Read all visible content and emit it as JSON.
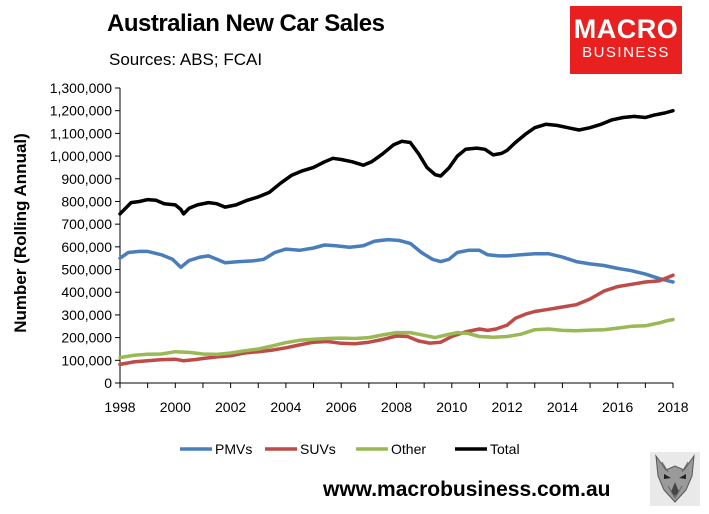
{
  "header": {
    "title": "Australian New Car Sales",
    "subtitle": "Sources: ABS; FCAI"
  },
  "brand": {
    "line1": "MACRO",
    "line2": "BUSINESS",
    "color": "#e8201f"
  },
  "footer": {
    "website": "www.macrobusiness.com.au",
    "logo_icon": "wolf-icon"
  },
  "chart_data": {
    "type": "line",
    "title": "Australian New Car Sales",
    "xlabel": "",
    "ylabel": "Number (Rolling Annual)",
    "xlim": [
      1998,
      2018
    ],
    "ylim": [
      0,
      1300000
    ],
    "grid": false,
    "legend_position": "bottom",
    "y_ticks": [
      {
        "value": 0,
        "label": "0"
      },
      {
        "value": 100000,
        "label": "100,000"
      },
      {
        "value": 200000,
        "label": "200,000"
      },
      {
        "value": 300000,
        "label": "300,000"
      },
      {
        "value": 400000,
        "label": "400,000"
      },
      {
        "value": 500000,
        "label": "500,000"
      },
      {
        "value": 600000,
        "label": "600,000"
      },
      {
        "value": 700000,
        "label": "700,000"
      },
      {
        "value": 800000,
        "label": "800,000"
      },
      {
        "value": 900000,
        "label": "900,000"
      },
      {
        "value": 1000000,
        "label": "1,000,000"
      },
      {
        "value": 1100000,
        "label": "1,100,000"
      },
      {
        "value": 1200000,
        "label": "1,200,000"
      },
      {
        "value": 1300000,
        "label": "1,300,000"
      }
    ],
    "x_ticks": [
      {
        "value": 1998,
        "label": "1998"
      },
      {
        "value": 2000,
        "label": "2000"
      },
      {
        "value": 2002,
        "label": "2002"
      },
      {
        "value": 2004,
        "label": "2004"
      },
      {
        "value": 2006,
        "label": "2006"
      },
      {
        "value": 2008,
        "label": "2008"
      },
      {
        "value": 2010,
        "label": "2010"
      },
      {
        "value": 2012,
        "label": "2012"
      },
      {
        "value": 2014,
        "label": "2014"
      },
      {
        "value": 2016,
        "label": "2016"
      },
      {
        "value": 2018,
        "label": "2018"
      }
    ],
    "series": [
      {
        "name": "PMVs",
        "color": "#4a7ebb",
        "points": [
          [
            1998.0,
            550000
          ],
          [
            1998.3,
            575000
          ],
          [
            1998.7,
            580000
          ],
          [
            1999.0,
            580000
          ],
          [
            1999.5,
            565000
          ],
          [
            1999.9,
            545000
          ],
          [
            2000.2,
            510000
          ],
          [
            2000.5,
            540000
          ],
          [
            2000.9,
            555000
          ],
          [
            2001.2,
            560000
          ],
          [
            2001.5,
            545000
          ],
          [
            2001.8,
            530000
          ],
          [
            2002.3,
            535000
          ],
          [
            2002.8,
            538000
          ],
          [
            2003.2,
            545000
          ],
          [
            2003.6,
            575000
          ],
          [
            2004.0,
            590000
          ],
          [
            2004.5,
            585000
          ],
          [
            2005.0,
            595000
          ],
          [
            2005.4,
            608000
          ],
          [
            2005.8,
            605000
          ],
          [
            2006.3,
            598000
          ],
          [
            2006.8,
            605000
          ],
          [
            2007.2,
            625000
          ],
          [
            2007.7,
            632000
          ],
          [
            2008.1,
            628000
          ],
          [
            2008.5,
            615000
          ],
          [
            2008.9,
            575000
          ],
          [
            2009.3,
            545000
          ],
          [
            2009.6,
            535000
          ],
          [
            2009.9,
            545000
          ],
          [
            2010.2,
            575000
          ],
          [
            2010.6,
            585000
          ],
          [
            2011.0,
            585000
          ],
          [
            2011.3,
            565000
          ],
          [
            2011.7,
            560000
          ],
          [
            2012.0,
            560000
          ],
          [
            2012.5,
            565000
          ],
          [
            2013.0,
            570000
          ],
          [
            2013.5,
            570000
          ],
          [
            2014.0,
            555000
          ],
          [
            2014.5,
            535000
          ],
          [
            2015.0,
            525000
          ],
          [
            2015.5,
            518000
          ],
          [
            2016.0,
            505000
          ],
          [
            2016.5,
            495000
          ],
          [
            2017.0,
            480000
          ],
          [
            2017.5,
            460000
          ],
          [
            2017.9,
            448000
          ],
          [
            2018.0,
            445000
          ]
        ]
      },
      {
        "name": "SUVs",
        "color": "#be4b48",
        "points": [
          [
            1998.0,
            82000
          ],
          [
            1998.5,
            93000
          ],
          [
            1999.0,
            98000
          ],
          [
            1999.5,
            103000
          ],
          [
            2000.0,
            105000
          ],
          [
            2000.3,
            98000
          ],
          [
            2000.7,
            103000
          ],
          [
            2001.0,
            108000
          ],
          [
            2001.5,
            115000
          ],
          [
            2002.0,
            120000
          ],
          [
            2002.5,
            132000
          ],
          [
            2003.0,
            138000
          ],
          [
            2003.5,
            145000
          ],
          [
            2004.0,
            155000
          ],
          [
            2004.5,
            168000
          ],
          [
            2005.0,
            180000
          ],
          [
            2005.5,
            183000
          ],
          [
            2006.0,
            175000
          ],
          [
            2006.5,
            173000
          ],
          [
            2007.0,
            180000
          ],
          [
            2007.5,
            192000
          ],
          [
            2008.0,
            207000
          ],
          [
            2008.4,
            205000
          ],
          [
            2008.8,
            185000
          ],
          [
            2009.2,
            176000
          ],
          [
            2009.6,
            180000
          ],
          [
            2010.0,
            205000
          ],
          [
            2010.5,
            225000
          ],
          [
            2011.0,
            238000
          ],
          [
            2011.3,
            232000
          ],
          [
            2011.6,
            238000
          ],
          [
            2012.0,
            255000
          ],
          [
            2012.3,
            285000
          ],
          [
            2012.7,
            305000
          ],
          [
            2013.0,
            315000
          ],
          [
            2013.5,
            325000
          ],
          [
            2014.0,
            335000
          ],
          [
            2014.5,
            345000
          ],
          [
            2015.0,
            370000
          ],
          [
            2015.5,
            405000
          ],
          [
            2016.0,
            425000
          ],
          [
            2016.5,
            435000
          ],
          [
            2017.0,
            445000
          ],
          [
            2017.5,
            450000
          ],
          [
            2017.8,
            465000
          ],
          [
            2018.0,
            475000
          ]
        ]
      },
      {
        "name": "Other",
        "color": "#98b954",
        "points": [
          [
            1998.0,
            112000
          ],
          [
            1998.5,
            122000
          ],
          [
            1999.0,
            127000
          ],
          [
            1999.5,
            128000
          ],
          [
            2000.0,
            138000
          ],
          [
            2000.5,
            135000
          ],
          [
            2001.0,
            128000
          ],
          [
            2001.5,
            126000
          ],
          [
            2002.0,
            132000
          ],
          [
            2002.5,
            142000
          ],
          [
            2003.0,
            150000
          ],
          [
            2003.5,
            163000
          ],
          [
            2004.0,
            178000
          ],
          [
            2004.5,
            188000
          ],
          [
            2005.0,
            193000
          ],
          [
            2005.5,
            196000
          ],
          [
            2006.0,
            198000
          ],
          [
            2006.5,
            196000
          ],
          [
            2007.0,
            200000
          ],
          [
            2007.5,
            212000
          ],
          [
            2008.0,
            222000
          ],
          [
            2008.5,
            222000
          ],
          [
            2009.0,
            210000
          ],
          [
            2009.4,
            200000
          ],
          [
            2009.8,
            212000
          ],
          [
            2010.2,
            222000
          ],
          [
            2010.6,
            218000
          ],
          [
            2011.0,
            205000
          ],
          [
            2011.5,
            202000
          ],
          [
            2012.0,
            205000
          ],
          [
            2012.5,
            215000
          ],
          [
            2013.0,
            235000
          ],
          [
            2013.5,
            238000
          ],
          [
            2014.0,
            232000
          ],
          [
            2014.5,
            230000
          ],
          [
            2015.0,
            233000
          ],
          [
            2015.5,
            235000
          ],
          [
            2016.0,
            242000
          ],
          [
            2016.5,
            250000
          ],
          [
            2017.0,
            252000
          ],
          [
            2017.5,
            265000
          ],
          [
            2017.8,
            275000
          ],
          [
            2018.0,
            280000
          ]
        ]
      },
      {
        "name": "Total",
        "color": "#000000",
        "points": [
          [
            1998.0,
            745000
          ],
          [
            1998.2,
            770000
          ],
          [
            1998.4,
            795000
          ],
          [
            1998.7,
            800000
          ],
          [
            1999.0,
            808000
          ],
          [
            1999.3,
            805000
          ],
          [
            1999.6,
            790000
          ],
          [
            2000.0,
            785000
          ],
          [
            2000.2,
            765000
          ],
          [
            2000.3,
            745000
          ],
          [
            2000.5,
            770000
          ],
          [
            2000.8,
            785000
          ],
          [
            2001.2,
            795000
          ],
          [
            2001.5,
            790000
          ],
          [
            2001.8,
            775000
          ],
          [
            2002.2,
            785000
          ],
          [
            2002.6,
            805000
          ],
          [
            2003.0,
            820000
          ],
          [
            2003.4,
            840000
          ],
          [
            2003.8,
            880000
          ],
          [
            2004.2,
            915000
          ],
          [
            2004.6,
            935000
          ],
          [
            2005.0,
            950000
          ],
          [
            2005.4,
            975000
          ],
          [
            2005.7,
            990000
          ],
          [
            2006.0,
            985000
          ],
          [
            2006.4,
            975000
          ],
          [
            2006.8,
            960000
          ],
          [
            2007.1,
            975000
          ],
          [
            2007.5,
            1010000
          ],
          [
            2007.9,
            1050000
          ],
          [
            2008.2,
            1065000
          ],
          [
            2008.5,
            1060000
          ],
          [
            2008.8,
            1010000
          ],
          [
            2009.1,
            950000
          ],
          [
            2009.4,
            918000
          ],
          [
            2009.6,
            912000
          ],
          [
            2009.9,
            948000
          ],
          [
            2010.2,
            1000000
          ],
          [
            2010.5,
            1030000
          ],
          [
            2010.9,
            1035000
          ],
          [
            2011.2,
            1030000
          ],
          [
            2011.5,
            1005000
          ],
          [
            2011.8,
            1012000
          ],
          [
            2012.0,
            1025000
          ],
          [
            2012.3,
            1060000
          ],
          [
            2012.7,
            1100000
          ],
          [
            2013.0,
            1125000
          ],
          [
            2013.4,
            1140000
          ],
          [
            2013.8,
            1135000
          ],
          [
            2014.2,
            1125000
          ],
          [
            2014.6,
            1115000
          ],
          [
            2015.0,
            1125000
          ],
          [
            2015.4,
            1140000
          ],
          [
            2015.8,
            1160000
          ],
          [
            2016.2,
            1170000
          ],
          [
            2016.6,
            1175000
          ],
          [
            2017.0,
            1170000
          ],
          [
            2017.3,
            1180000
          ],
          [
            2017.7,
            1190000
          ],
          [
            2018.0,
            1200000
          ]
        ]
      }
    ]
  }
}
